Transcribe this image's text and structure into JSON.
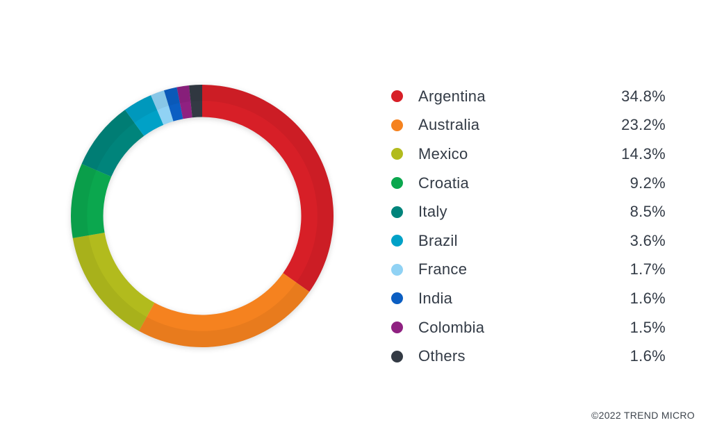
{
  "chart_data": {
    "type": "pie",
    "subtype": "donut",
    "start_angle_deg": 0,
    "direction": "clockwise",
    "legend_position": "right",
    "total": 100,
    "inner_radius_ratio": 0.754,
    "series": [
      {
        "label": "Argentina",
        "value": 34.8,
        "display": "34.8%",
        "color": "#D71F27"
      },
      {
        "label": "Australia",
        "value": 23.2,
        "display": "23.2%",
        "color": "#F5821F"
      },
      {
        "label": "Mexico",
        "value": 14.3,
        "display": "14.3%",
        "color": "#B2BB1D"
      },
      {
        "label": "Croatia",
        "value": 9.2,
        "display": "9.2%",
        "color": "#0BA74E"
      },
      {
        "label": "Italy",
        "value": 8.5,
        "display": "8.5%",
        "color": "#00847B"
      },
      {
        "label": "Brazil",
        "value": 3.6,
        "display": "3.6%",
        "color": "#00A1C7"
      },
      {
        "label": "France",
        "value": 1.7,
        "display": "1.7%",
        "color": "#90D2F4"
      },
      {
        "label": "India",
        "value": 1.6,
        "display": "1.6%",
        "color": "#0B5EC2"
      },
      {
        "label": "Colombia",
        "value": 1.5,
        "display": "1.5%",
        "color": "#8F2181"
      },
      {
        "label": "Others",
        "value": 1.6,
        "display": "1.6%",
        "color": "#333A44"
      }
    ]
  },
  "footer": {
    "copyright": "©2022 TREND MICRO"
  },
  "colors": {
    "background": "#FFFFFF",
    "legend_text": "#333B46",
    "footer_text": "#3E454D"
  }
}
